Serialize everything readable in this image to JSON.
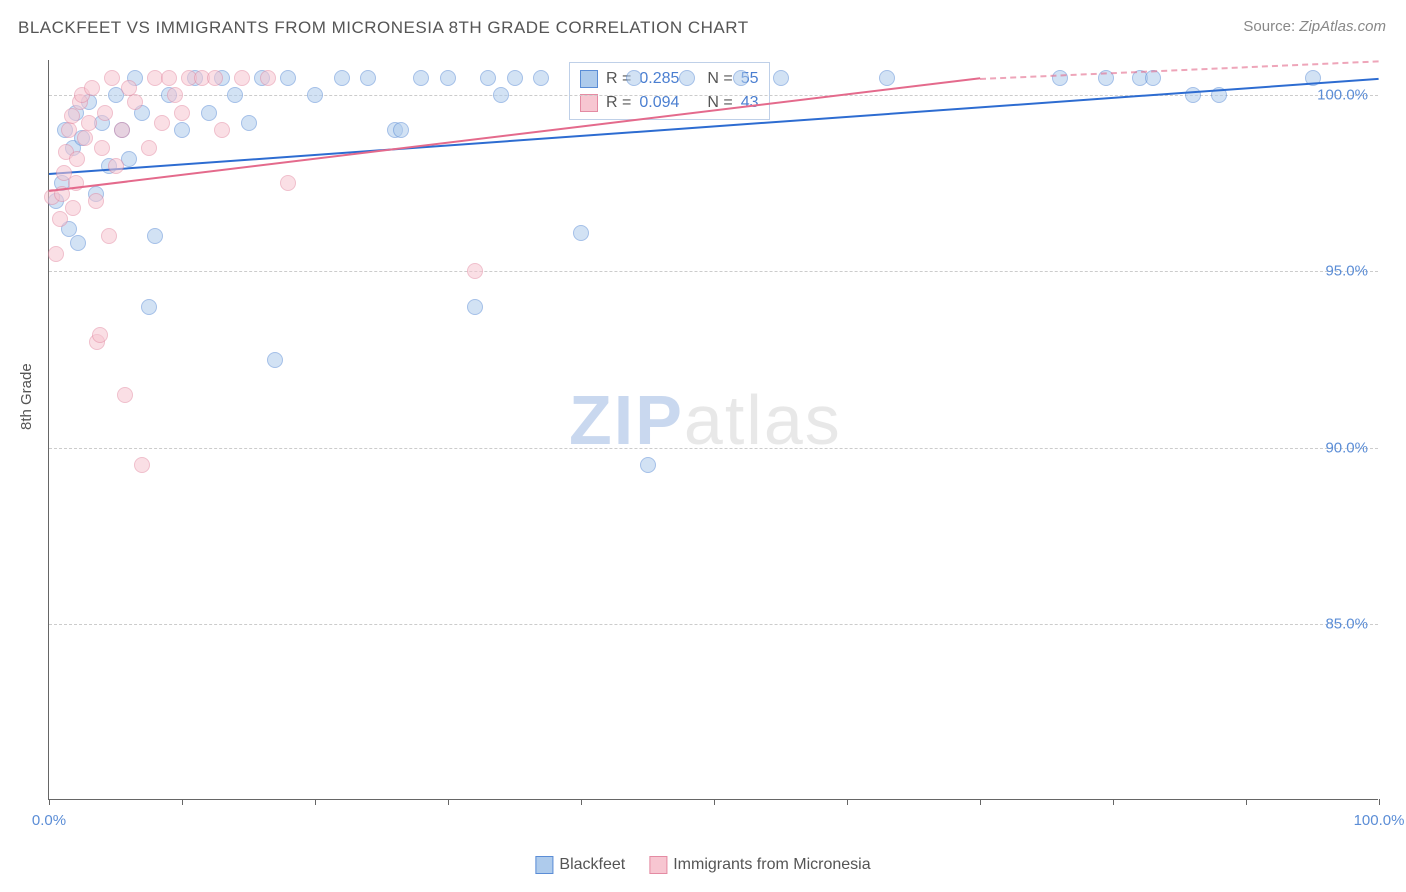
{
  "title": "BLACKFEET VS IMMIGRANTS FROM MICRONESIA 8TH GRADE CORRELATION CHART",
  "source_label": "Source:",
  "source_name": "ZipAtlas.com",
  "yaxis_title": "8th Grade",
  "watermark": {
    "part1": "ZIP",
    "part2": "atlas"
  },
  "chart": {
    "type": "scatter",
    "xlim": [
      0,
      100
    ],
    "ylim": [
      80,
      101
    ],
    "x_ticks": [
      0,
      10,
      20,
      30,
      40,
      50,
      60,
      70,
      80,
      90,
      100
    ],
    "x_tick_labels": {
      "0": "0.0%",
      "100": "100.0%"
    },
    "y_gridlines": [
      85,
      90,
      95,
      100
    ],
    "y_tick_labels": {
      "85": "85.0%",
      "90": "90.0%",
      "95": "95.0%",
      "100": "100.0%"
    },
    "grid_color": "#cccccc",
    "axis_color": "#666666",
    "background_color": "#ffffff",
    "point_radius": 8,
    "point_opacity": 0.55,
    "series": [
      {
        "name": "Blackfeet",
        "fill_color": "#aecbec",
        "stroke_color": "#5b8dd6",
        "line_color": "#2d6cd1",
        "R": "0.285",
        "N": "55",
        "trend": {
          "x1": 0,
          "y1": 97.8,
          "x2": 100,
          "y2": 100.5
        },
        "points": [
          [
            0.5,
            97.0
          ],
          [
            1.0,
            97.5
          ],
          [
            1.2,
            99.0
          ],
          [
            1.5,
            96.2
          ],
          [
            1.8,
            98.5
          ],
          [
            2.0,
            99.5
          ],
          [
            2.2,
            95.8
          ],
          [
            2.5,
            98.8
          ],
          [
            3.0,
            99.8
          ],
          [
            3.5,
            97.2
          ],
          [
            4.0,
            99.2
          ],
          [
            4.5,
            98.0
          ],
          [
            5.0,
            100.0
          ],
          [
            5.5,
            99.0
          ],
          [
            6.0,
            98.2
          ],
          [
            6.5,
            100.5
          ],
          [
            7.0,
            99.5
          ],
          [
            7.5,
            94.0
          ],
          [
            8.0,
            96.0
          ],
          [
            9.0,
            100.0
          ],
          [
            10.0,
            99.0
          ],
          [
            11.0,
            100.5
          ],
          [
            12.0,
            99.5
          ],
          [
            13.0,
            100.5
          ],
          [
            14.0,
            100.0
          ],
          [
            15.0,
            99.2
          ],
          [
            16.0,
            100.5
          ],
          [
            17.0,
            92.5
          ],
          [
            18.0,
            100.5
          ],
          [
            20.0,
            100.0
          ],
          [
            22.0,
            100.5
          ],
          [
            24.0,
            100.5
          ],
          [
            26.0,
            99.0
          ],
          [
            26.5,
            99.0
          ],
          [
            28.0,
            100.5
          ],
          [
            30.0,
            100.5
          ],
          [
            32.0,
            94.0
          ],
          [
            33.0,
            100.5
          ],
          [
            34.0,
            100.0
          ],
          [
            35.0,
            100.5
          ],
          [
            37.0,
            100.5
          ],
          [
            40.0,
            96.1
          ],
          [
            44.0,
            100.5
          ],
          [
            45.0,
            89.5
          ],
          [
            48.0,
            100.5
          ],
          [
            52.0,
            100.5
          ],
          [
            55.0,
            100.5
          ],
          [
            63.0,
            100.5
          ],
          [
            76.0,
            100.5
          ],
          [
            79.5,
            100.5
          ],
          [
            82.0,
            100.5
          ],
          [
            83.0,
            100.5
          ],
          [
            86.0,
            100.0
          ],
          [
            88.0,
            100.0
          ],
          [
            95.0,
            100.5
          ]
        ]
      },
      {
        "name": "Immigrants from Micronesia",
        "fill_color": "#f7c6d1",
        "stroke_color": "#e48ba3",
        "line_color": "#e46a8c",
        "R": "0.094",
        "N": "43",
        "trend": {
          "x1": 0,
          "y1": 97.3,
          "x2": 70,
          "y2": 100.5
        },
        "points": [
          [
            0.2,
            97.1
          ],
          [
            0.5,
            95.5
          ],
          [
            0.8,
            96.5
          ],
          [
            1.0,
            97.2
          ],
          [
            1.1,
            97.8
          ],
          [
            1.3,
            98.4
          ],
          [
            1.5,
            99.0
          ],
          [
            1.7,
            99.4
          ],
          [
            1.8,
            96.8
          ],
          [
            2.0,
            97.5
          ],
          [
            2.1,
            98.2
          ],
          [
            2.3,
            99.8
          ],
          [
            2.5,
            100.0
          ],
          [
            2.7,
            98.8
          ],
          [
            3.0,
            99.2
          ],
          [
            3.2,
            100.2
          ],
          [
            3.5,
            97.0
          ],
          [
            3.6,
            93.0
          ],
          [
            3.8,
            93.2
          ],
          [
            4.0,
            98.5
          ],
          [
            4.2,
            99.5
          ],
          [
            4.5,
            96.0
          ],
          [
            4.7,
            100.5
          ],
          [
            5.0,
            98.0
          ],
          [
            5.5,
            99.0
          ],
          [
            5.7,
            91.5
          ],
          [
            6.0,
            100.2
          ],
          [
            6.5,
            99.8
          ],
          [
            7.0,
            89.5
          ],
          [
            7.5,
            98.5
          ],
          [
            8.0,
            100.5
          ],
          [
            8.5,
            99.2
          ],
          [
            9.0,
            100.5
          ],
          [
            9.5,
            100.0
          ],
          [
            10.0,
            99.5
          ],
          [
            10.5,
            100.5
          ],
          [
            11.5,
            100.5
          ],
          [
            12.5,
            100.5
          ],
          [
            13.0,
            99.0
          ],
          [
            14.5,
            100.5
          ],
          [
            16.5,
            100.5
          ],
          [
            18.0,
            97.5
          ],
          [
            32.0,
            95.0
          ]
        ]
      }
    ]
  },
  "legend": {
    "r_label": "R =",
    "n_label": "N ="
  }
}
